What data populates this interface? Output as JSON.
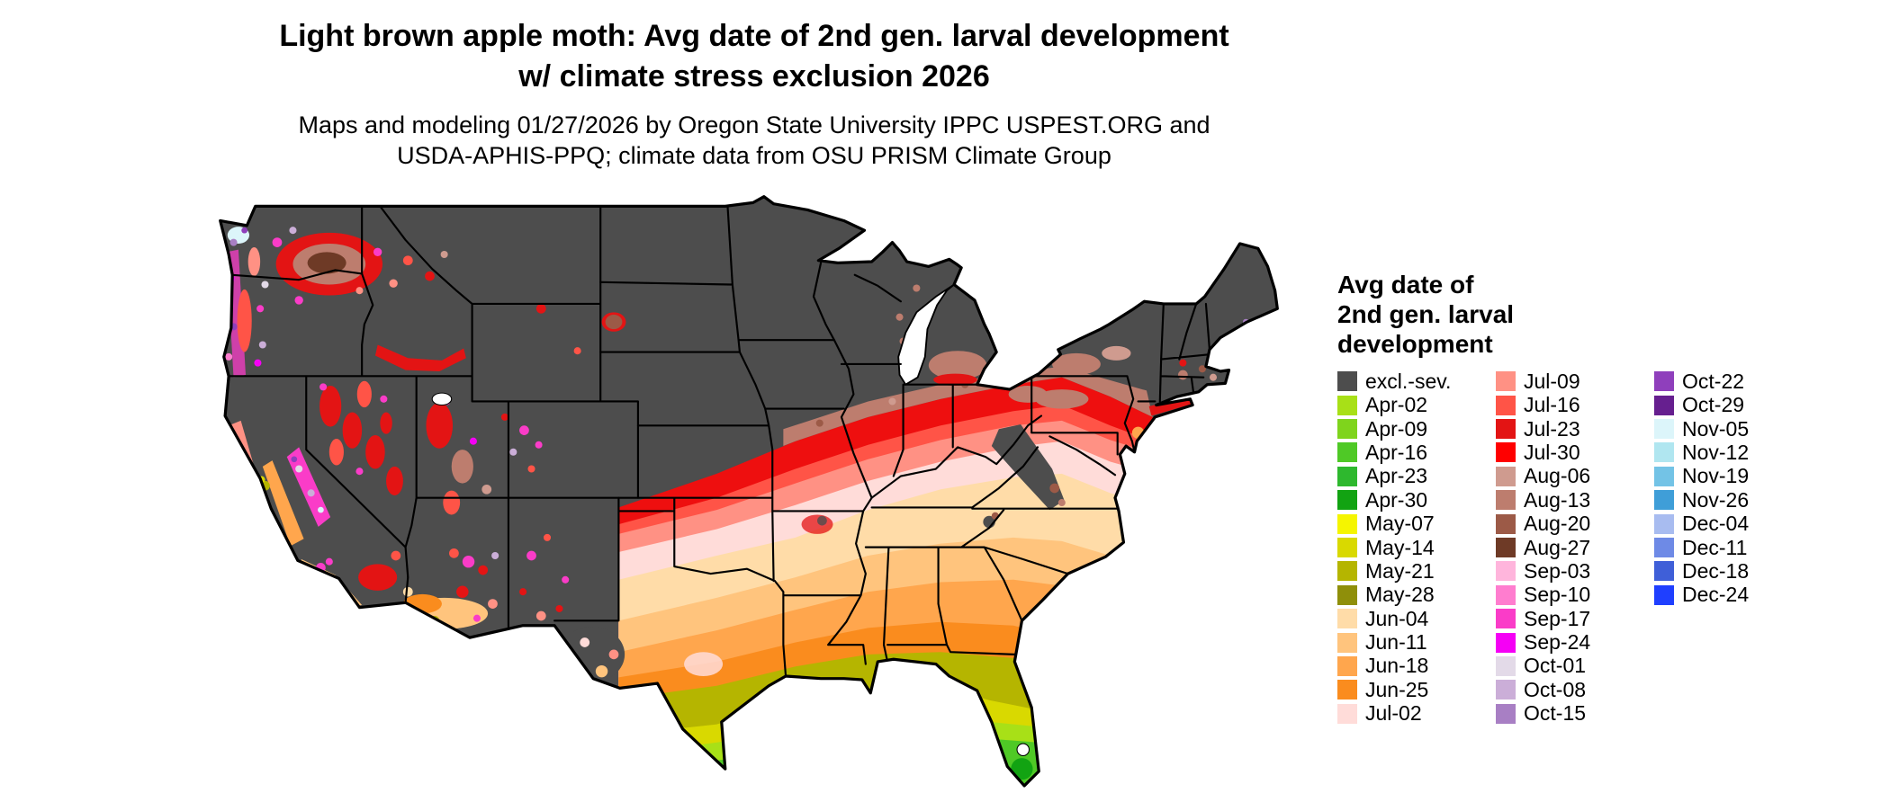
{
  "title": {
    "line1": "Light brown apple moth: Avg date of 2nd gen. larval development",
    "line2": "w/ climate stress exclusion 2026"
  },
  "subtitle": {
    "line1": "Maps and modeling 01/27/2026 by Oregon State University IPPC USPEST.ORG and",
    "line2": "USDA-APHIS-PPQ; climate data from OSU PRISM Climate Group"
  },
  "legend": {
    "title_lines": [
      "Avg date of",
      "2nd gen. larval",
      "development"
    ],
    "columns": [
      {
        "entries": [
          {
            "label": "excl.-sev.",
            "color": "#4d4d4d"
          },
          {
            "label": "Apr-02",
            "color": "#a8e017"
          },
          {
            "label": "Apr-09",
            "color": "#7fd41c"
          },
          {
            "label": "Apr-16",
            "color": "#4fc926"
          },
          {
            "label": "Apr-23",
            "color": "#2eb82e"
          },
          {
            "label": "Apr-30",
            "color": "#12a312"
          },
          {
            "label": "May-07",
            "color": "#f5f500"
          },
          {
            "label": "May-14",
            "color": "#d9d900"
          },
          {
            "label": "May-21",
            "color": "#b5b500"
          },
          {
            "label": "May-28",
            "color": "#8f8f0a"
          },
          {
            "label": "Jun-04",
            "color": "#ffdca8"
          },
          {
            "label": "Jun-11",
            "color": "#ffc47d"
          },
          {
            "label": "Jun-18",
            "color": "#ffa64d"
          },
          {
            "label": "Jun-25",
            "color": "#fa8c1e"
          },
          {
            "label": "Jul-02",
            "color": "#ffdcd9"
          }
        ]
      },
      {
        "entries": [
          {
            "label": "Jul-09",
            "color": "#ff9184"
          },
          {
            "label": "Jul-16",
            "color": "#ff5447"
          },
          {
            "label": "Jul-23",
            "color": "#e31414"
          },
          {
            "label": "Jul-30",
            "color": "#ff0000"
          },
          {
            "label": "Aug-06",
            "color": "#cf9b8f"
          },
          {
            "label": "Aug-13",
            "color": "#bd7d6e"
          },
          {
            "label": "Aug-20",
            "color": "#9c5a47"
          },
          {
            "label": "Aug-27",
            "color": "#6e3a26"
          },
          {
            "label": "Sep-03",
            "color": "#ffb5dc"
          },
          {
            "label": "Sep-10",
            "color": "#ff7dcf"
          },
          {
            "label": "Sep-17",
            "color": "#fa3cc8"
          },
          {
            "label": "Sep-24",
            "color": "#f500f5"
          },
          {
            "label": "Oct-01",
            "color": "#e3dae8"
          },
          {
            "label": "Oct-08",
            "color": "#cbaed8"
          },
          {
            "label": "Oct-15",
            "color": "#a87fc4"
          }
        ]
      },
      {
        "entries": [
          {
            "label": "Oct-22",
            "color": "#8f3fbc"
          },
          {
            "label": "Oct-29",
            "color": "#661f8f"
          },
          {
            "label": "Nov-05",
            "color": "#dcf5fa"
          },
          {
            "label": "Nov-12",
            "color": "#b0e6f0"
          },
          {
            "label": "Nov-19",
            "color": "#73c3e6"
          },
          {
            "label": "Nov-26",
            "color": "#3f9ed8"
          },
          {
            "label": "Dec-04",
            "color": "#a8bcf0"
          },
          {
            "label": "Dec-11",
            "color": "#6e8ae6"
          },
          {
            "label": "Dec-18",
            "color": "#3f5fd8"
          },
          {
            "label": "Dec-24",
            "color": "#1f3fff"
          }
        ]
      }
    ]
  }
}
